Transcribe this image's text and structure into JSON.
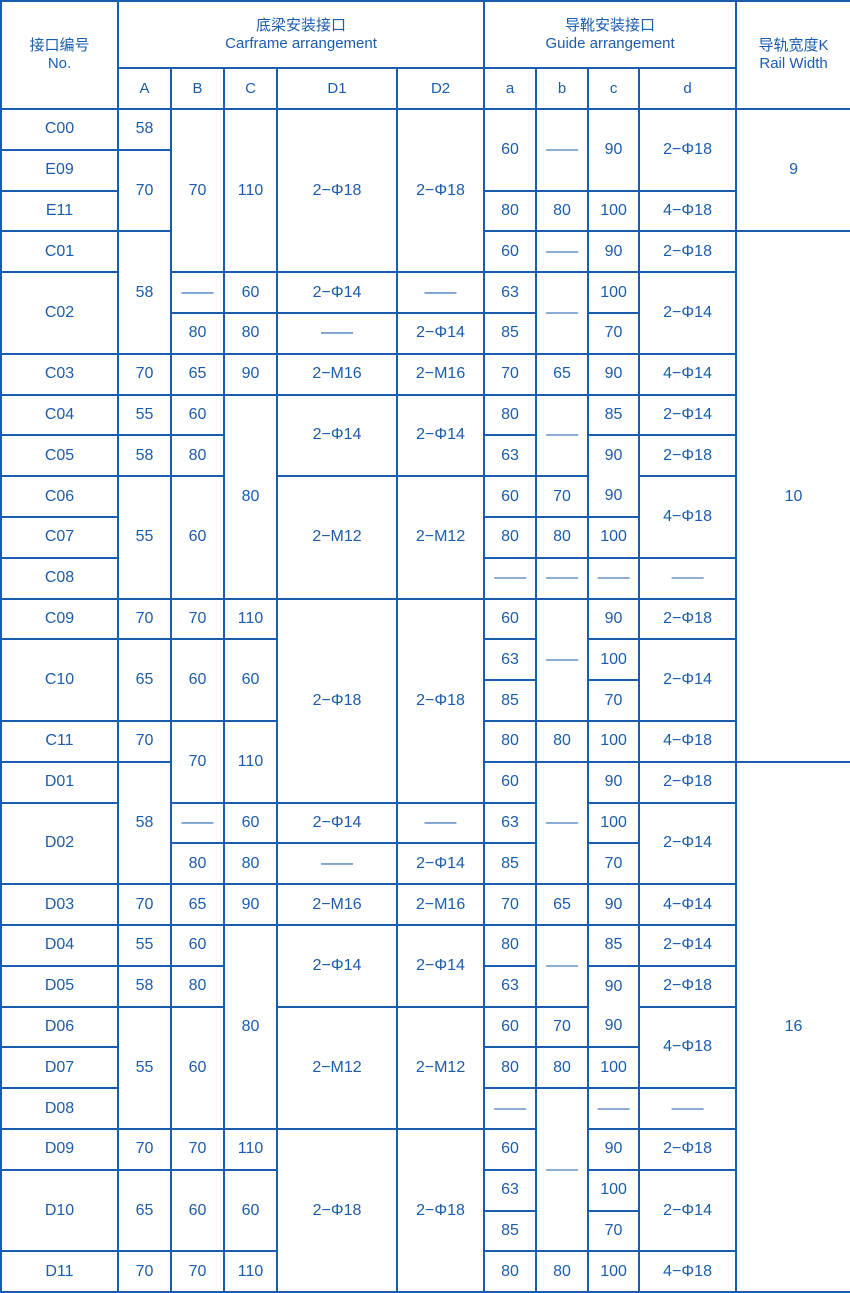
{
  "header": {
    "no": {
      "cn": "接口编号",
      "en": "No."
    },
    "carframe": {
      "cn": "底梁安装接口",
      "en": "Carframe arrangement"
    },
    "guide": {
      "cn": "导靴安装接口",
      "en": "Guide arrangement"
    },
    "rail": {
      "cn": "导轨宽度K",
      "en": "Rail Width"
    },
    "sub": [
      "A",
      "B",
      "C",
      "D1",
      "D2",
      "a",
      "b",
      "c",
      "d"
    ]
  },
  "colors": {
    "line": "#1a5cae",
    "text": "#1a5cae",
    "background": "#ffffff"
  },
  "table": {
    "rows": [
      [
        {
          "t": "C00"
        },
        {
          "t": "58"
        },
        {
          "t": "70",
          "rs": 4
        },
        {
          "t": "110",
          "rs": 4
        },
        {
          "t": "2−Φ18",
          "rs": 4
        },
        {
          "t": "2−Φ18",
          "rs": 4
        },
        {
          "t": "60",
          "rs": 2
        },
        {
          "t": "——",
          "rs": 2
        },
        {
          "t": "90",
          "rs": 2
        },
        {
          "t": "2−Φ18",
          "rs": 2
        },
        {
          "t": "9",
          "rs": 3
        }
      ],
      [
        {
          "t": "E09"
        },
        {
          "t": "70",
          "rs": 2
        }
      ],
      [
        {
          "t": "E11"
        },
        {
          "t": "80"
        },
        {
          "t": "80"
        },
        {
          "t": "100"
        },
        {
          "t": "4−Φ18"
        }
      ],
      [
        {
          "t": "C01"
        },
        {
          "t": "58",
          "rs": 3
        },
        {
          "t": "60"
        },
        {
          "t": "——"
        },
        {
          "t": "90"
        },
        {
          "t": "2−Φ18"
        },
        {
          "t": "10",
          "rs": 13
        }
      ],
      [
        {
          "t": "C02",
          "rs": 2
        },
        {
          "t": "——"
        },
        {
          "t": "60"
        },
        {
          "t": "2−Φ14"
        },
        {
          "t": "——"
        },
        {
          "t": "63"
        },
        {
          "t": "——",
          "rs": 2
        },
        {
          "t": "100"
        },
        {
          "t": "2−Φ14",
          "rs": 2
        }
      ],
      [
        {
          "t": "80"
        },
        {
          "t": "80"
        },
        {
          "t": "——"
        },
        {
          "t": "2−Φ14"
        },
        {
          "t": "85"
        },
        {
          "t": "70"
        }
      ],
      [
        {
          "t": "C03"
        },
        {
          "t": "70"
        },
        {
          "t": "65"
        },
        {
          "t": "90"
        },
        {
          "t": "2−M16"
        },
        {
          "t": "2−M16"
        },
        {
          "t": "70"
        },
        {
          "t": "65"
        },
        {
          "t": "90"
        },
        {
          "t": "4−Φ14"
        }
      ],
      [
        {
          "t": "C04"
        },
        {
          "t": "55"
        },
        {
          "t": "60"
        },
        {
          "t": "80",
          "rs": 5
        },
        {
          "t": "2−Φ14",
          "rs": 2
        },
        {
          "t": "2−Φ14",
          "rs": 2
        },
        {
          "t": "80"
        },
        {
          "t": "——",
          "rs": 2
        },
        {
          "t": "85"
        },
        {
          "t": "2−Φ14"
        }
      ],
      [
        {
          "t": "C05"
        },
        {
          "t": "58"
        },
        {
          "t": "80"
        },
        {
          "t": "63"
        },
        {
          "t": "90",
          "t2": "90",
          "rs": 2
        },
        {
          "t": "2−Φ18"
        }
      ],
      [
        {
          "t": "C06"
        },
        {
          "t": "55",
          "rs": 3
        },
        {
          "t": "60",
          "rs": 3
        },
        {
          "t": "2−M12",
          "rs": 3
        },
        {
          "t": "2−M12",
          "rs": 3
        },
        {
          "t": "60"
        },
        {
          "t": "70"
        },
        {
          "t": "4−Φ18",
          "rs": 2
        }
      ],
      [
        {
          "t": "C07"
        },
        {
          "t": "80"
        },
        {
          "t": "80"
        },
        {
          "t": "100"
        }
      ],
      [
        {
          "t": "C08"
        },
        {
          "t": "——"
        },
        {
          "t": "——"
        },
        {
          "t": "——"
        },
        {
          "t": "——"
        }
      ],
      [
        {
          "t": "C09"
        },
        {
          "t": "70"
        },
        {
          "t": "70"
        },
        {
          "t": "110"
        },
        {
          "t": "2−Φ18",
          "rs": 5
        },
        {
          "t": "2−Φ18",
          "rs": 5
        },
        {
          "t": "60"
        },
        {
          "t": "——",
          "rs": 3
        },
        {
          "t": "90"
        },
        {
          "t": "2−Φ18"
        }
      ],
      [
        {
          "t": "C10",
          "rs": 2
        },
        {
          "t": "65",
          "rs": 2
        },
        {
          "t": "60",
          "rs": 2
        },
        {
          "t": "60",
          "rs": 2
        },
        {
          "t": "63"
        },
        {
          "t": "100"
        },
        {
          "t": "2−Φ14",
          "rs": 2
        }
      ],
      [
        {
          "t": "85"
        },
        {
          "t": "70"
        }
      ],
      [
        {
          "t": "C11"
        },
        {
          "t": "70"
        },
        {
          "t": "70",
          "rs": 2
        },
        {
          "t": "110",
          "rs": 2
        },
        {
          "t": "80"
        },
        {
          "t": "80"
        },
        {
          "t": "100"
        },
        {
          "t": "4−Φ18"
        }
      ],
      [
        {
          "t": "D01"
        },
        {
          "t": "58",
          "rs": 3
        },
        {
          "t": "60"
        },
        {
          "t": "——",
          "rs": 3
        },
        {
          "t": "90"
        },
        {
          "t": "2−Φ18"
        },
        {
          "t": "16",
          "rs": 13
        }
      ],
      [
        {
          "t": "D02",
          "rs": 2
        },
        {
          "t": "——"
        },
        {
          "t": "60"
        },
        {
          "t": "2−Φ14"
        },
        {
          "t": "——"
        },
        {
          "t": "63"
        },
        {
          "t": "100"
        },
        {
          "t": "2−Φ14",
          "rs": 2
        }
      ],
      [
        {
          "t": "80"
        },
        {
          "t": "80"
        },
        {
          "t": "——"
        },
        {
          "t": "2−Φ14"
        },
        {
          "t": "85"
        },
        {
          "t": "70"
        }
      ],
      [
        {
          "t": "D03"
        },
        {
          "t": "70"
        },
        {
          "t": "65"
        },
        {
          "t": "90"
        },
        {
          "t": "2−M16"
        },
        {
          "t": "2−M16"
        },
        {
          "t": "70"
        },
        {
          "t": "65"
        },
        {
          "t": "90"
        },
        {
          "t": "4−Φ14"
        }
      ],
      [
        {
          "t": "D04"
        },
        {
          "t": "55"
        },
        {
          "t": "60"
        },
        {
          "t": "80",
          "rs": 5
        },
        {
          "t": "2−Φ14",
          "rs": 2
        },
        {
          "t": "2−Φ14",
          "rs": 2
        },
        {
          "t": "80"
        },
        {
          "t": "——",
          "rs": 2
        },
        {
          "t": "85"
        },
        {
          "t": "2−Φ14"
        }
      ],
      [
        {
          "t": "D05"
        },
        {
          "t": "58"
        },
        {
          "t": "80"
        },
        {
          "t": "63"
        },
        {
          "t": "90",
          "t2": "90",
          "rs": 2
        },
        {
          "t": "2−Φ18"
        }
      ],
      [
        {
          "t": "D06"
        },
        {
          "t": "55",
          "rs": 3
        },
        {
          "t": "60",
          "rs": 3
        },
        {
          "t": "2−M12",
          "rs": 3
        },
        {
          "t": "2−M12",
          "rs": 3
        },
        {
          "t": "60"
        },
        {
          "t": "70"
        },
        {
          "t": "4−Φ18",
          "rs": 2
        }
      ],
      [
        {
          "t": "D07"
        },
        {
          "t": "80"
        },
        {
          "t": "80"
        },
        {
          "t": "100"
        }
      ],
      [
        {
          "t": "D08"
        },
        {
          "t": "——"
        },
        {
          "t": "——",
          "rs": 4
        },
        {
          "t": "——"
        },
        {
          "t": "——"
        }
      ],
      [
        {
          "t": "D09"
        },
        {
          "t": "70"
        },
        {
          "t": "70"
        },
        {
          "t": "110"
        },
        {
          "t": "2−Φ18",
          "rs": 4
        },
        {
          "t": "2−Φ18",
          "rs": 4
        },
        {
          "t": "60"
        },
        {
          "t": "90"
        },
        {
          "t": "2−Φ18"
        }
      ],
      [
        {
          "t": "D10",
          "rs": 2
        },
        {
          "t": "65",
          "rs": 2
        },
        {
          "t": "60",
          "rs": 2
        },
        {
          "t": "60",
          "rs": 2
        },
        {
          "t": "63"
        },
        {
          "t": "100"
        },
        {
          "t": "2−Φ14",
          "rs": 2
        }
      ],
      [
        {
          "t": "85"
        },
        {
          "t": "70"
        }
      ],
      [
        {
          "t": "D11"
        },
        {
          "t": "70"
        },
        {
          "t": "70"
        },
        {
          "t": "110"
        },
        {
          "t": "80"
        },
        {
          "t": "80"
        },
        {
          "t": "100"
        },
        {
          "t": "4−Φ18"
        }
      ]
    ]
  }
}
